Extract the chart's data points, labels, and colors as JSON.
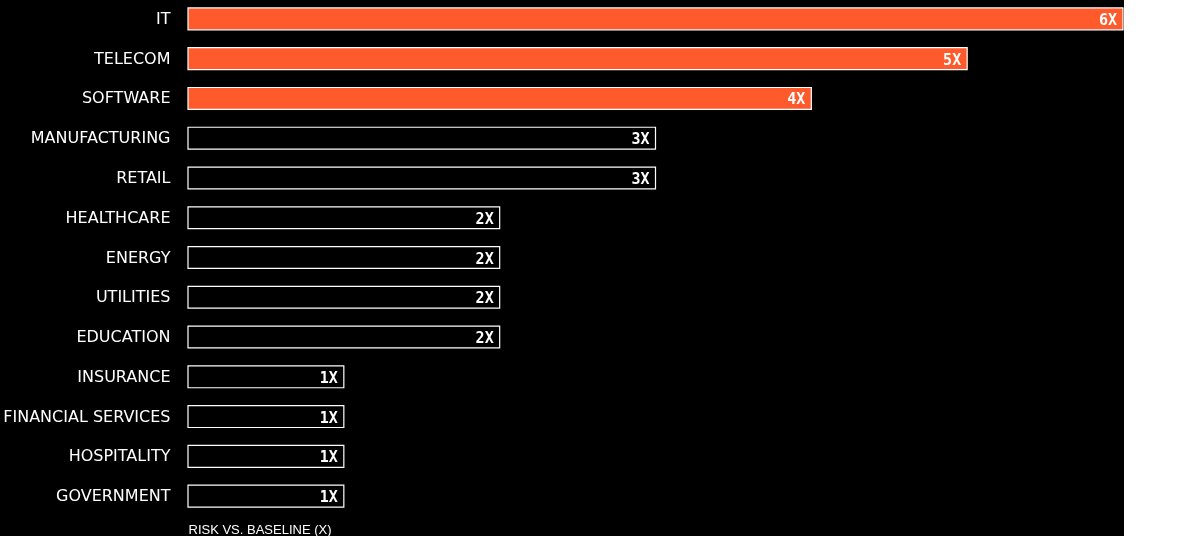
{
  "chart_data": {
    "type": "bar",
    "orientation": "horizontal",
    "xlabel": "RISK VS. BASELINE (X)",
    "categories": [
      "IT",
      "TELECOM",
      "SOFTWARE",
      "MANUFACTURING",
      "RETAIL",
      "HEALTHCARE",
      "ENERGY",
      "UTILITIES",
      "EDUCATION",
      "INSURANCE",
      "FINANCIAL SERVICES",
      "HOSPITALITY",
      "GOVERNMENT"
    ],
    "values": [
      6,
      5,
      4,
      3,
      3,
      2,
      2,
      2,
      2,
      1,
      1,
      1,
      1
    ],
    "colors": [
      "#ff5a2b",
      "#ff5a2b",
      "#ff5a2b",
      "#000000",
      "#000000",
      "#000000",
      "#000000",
      "#000000",
      "#000000",
      "#000000",
      "#000000",
      "#000000",
      "#000000"
    ],
    "value_labels": [
      "6X",
      "5X",
      "4X",
      "3X",
      "3X",
      "2X",
      "2X",
      "2X",
      "2X",
      "1X",
      "1X",
      "1X",
      "1X"
    ],
    "grid": false
  }
}
